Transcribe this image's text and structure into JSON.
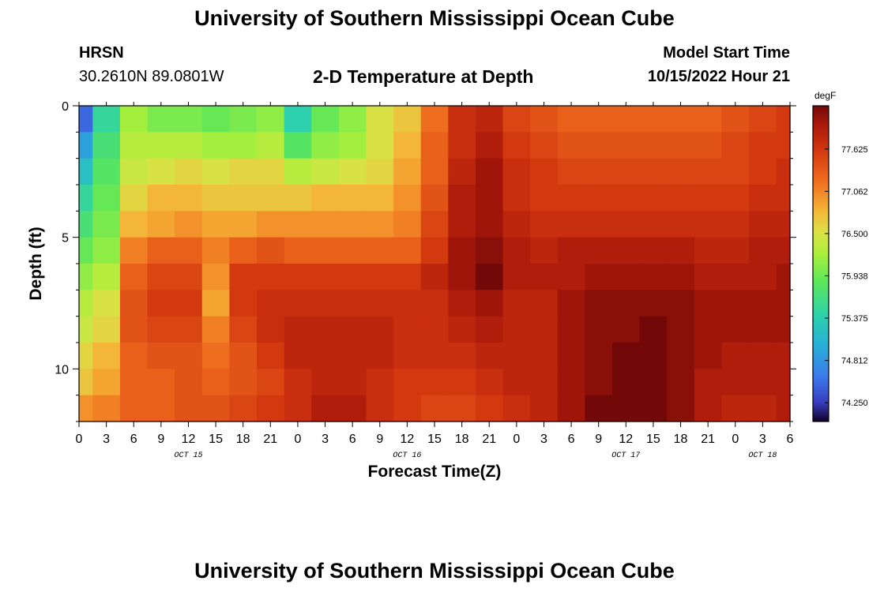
{
  "header": {
    "title": "University of Southern Mississippi Ocean Cube",
    "station": "HRSN",
    "coords": "30.2610N  89.0801W",
    "plot_title": "2-D Temperature at Depth",
    "model_start_label": "Model Start Time",
    "model_start_value": "10/15/2022 Hour 21"
  },
  "footer": {
    "title": "University of Southern Mississippi Ocean Cube"
  },
  "chart_data": {
    "type": "heatmap",
    "title": "2-D Temperature at Depth",
    "xlabel": "Forecast Time(Z)",
    "ylabel": "Depth (ft)",
    "x_ticks": [
      "0",
      "3",
      "6",
      "9",
      "12",
      "15",
      "18",
      "21",
      "0",
      "3",
      "6",
      "9",
      "12",
      "15",
      "18",
      "21",
      "0",
      "3",
      "6",
      "9",
      "12",
      "15",
      "18",
      "21",
      "0",
      "3",
      "6"
    ],
    "date_labels": [
      {
        "text": "OCT 15",
        "tick_index": 4
      },
      {
        "text": "OCT 16",
        "tick_index": 12
      },
      {
        "text": "OCT 17",
        "tick_index": 20
      },
      {
        "text": "OCT 18",
        "tick_index": 25
      }
    ],
    "y_ticks": [
      "0",
      "5",
      "10"
    ],
    "y_tick_values": [
      0,
      5,
      10
    ],
    "ylim": [
      0,
      12
    ],
    "colorbar": {
      "unit": "degF",
      "min": 74.0,
      "max": 78.2,
      "ticks": [
        "77.625",
        "77.062",
        "76.500",
        "75.938",
        "75.375",
        "74.812",
        "74.250"
      ],
      "tick_values": [
        77.625,
        77.062,
        76.5,
        75.938,
        75.375,
        74.812,
        74.25
      ]
    },
    "hours": [
      0,
      3,
      6,
      9,
      12,
      15,
      18,
      21,
      24,
      27,
      30,
      33,
      36,
      39,
      42,
      45,
      48,
      51,
      54,
      57,
      60,
      63,
      66,
      69,
      72,
      75,
      78
    ],
    "depths": [
      0.5,
      1.5,
      2.5,
      3.5,
      4.5,
      5.5,
      6.5,
      7.5,
      8.5,
      9.5,
      10.5,
      11.5
    ],
    "values": [
      [
        74.5,
        75.5,
        76.2,
        76.0,
        76.0,
        75.9,
        76.0,
        76.1,
        75.4,
        75.9,
        76.1,
        76.5,
        76.7,
        77.2,
        77.7,
        77.8,
        77.5,
        77.4,
        77.3,
        77.3,
        77.3,
        77.3,
        77.3,
        77.3,
        77.4,
        77.5,
        77.6
      ],
      [
        74.9,
        75.7,
        76.3,
        76.3,
        76.3,
        76.2,
        76.2,
        76.3,
        75.8,
        76.1,
        76.2,
        76.5,
        76.8,
        77.3,
        77.7,
        77.9,
        77.6,
        77.5,
        77.4,
        77.4,
        77.4,
        77.4,
        77.4,
        77.4,
        77.5,
        77.6,
        77.6
      ],
      [
        75.2,
        75.8,
        76.4,
        76.5,
        76.6,
        76.5,
        76.6,
        76.6,
        76.3,
        76.4,
        76.5,
        76.6,
        76.9,
        77.3,
        77.8,
        78.0,
        77.7,
        77.6,
        77.5,
        77.5,
        77.5,
        77.5,
        77.5,
        77.5,
        77.5,
        77.6,
        77.7
      ],
      [
        75.5,
        75.9,
        76.6,
        76.8,
        76.8,
        76.7,
        76.7,
        76.7,
        76.7,
        76.8,
        76.8,
        76.8,
        77.0,
        77.4,
        77.9,
        78.0,
        77.7,
        77.6,
        77.6,
        77.6,
        77.6,
        77.6,
        77.6,
        77.6,
        77.6,
        77.7,
        77.7
      ],
      [
        75.7,
        76.0,
        76.8,
        76.9,
        77.0,
        76.9,
        76.9,
        77.0,
        77.0,
        77.0,
        77.0,
        77.0,
        77.1,
        77.5,
        77.9,
        78.0,
        77.8,
        77.7,
        77.7,
        77.7,
        77.7,
        77.7,
        77.7,
        77.7,
        77.7,
        77.8,
        77.8
      ],
      [
        75.9,
        76.1,
        77.1,
        77.3,
        77.3,
        77.1,
        77.3,
        77.4,
        77.3,
        77.3,
        77.3,
        77.3,
        77.3,
        77.6,
        78.0,
        78.1,
        77.9,
        77.8,
        77.9,
        77.9,
        77.9,
        77.9,
        77.9,
        77.8,
        77.8,
        77.9,
        77.9
      ],
      [
        76.1,
        76.3,
        77.3,
        77.5,
        77.5,
        77.0,
        77.6,
        77.6,
        77.6,
        77.6,
        77.6,
        77.6,
        77.6,
        77.8,
        78.0,
        78.2,
        77.9,
        77.9,
        77.9,
        78.0,
        78.0,
        78.0,
        78.0,
        77.9,
        77.9,
        77.9,
        78.0
      ],
      [
        76.3,
        76.5,
        77.4,
        77.6,
        77.6,
        76.9,
        77.6,
        77.7,
        77.7,
        77.7,
        77.7,
        77.7,
        77.7,
        77.7,
        77.9,
        78.0,
        77.8,
        77.8,
        78.0,
        78.1,
        78.1,
        78.1,
        78.1,
        78.0,
        78.0,
        78.0,
        78.0
      ],
      [
        76.4,
        76.6,
        77.4,
        77.5,
        77.5,
        77.1,
        77.5,
        77.7,
        77.8,
        77.8,
        77.8,
        77.8,
        77.7,
        77.7,
        77.8,
        77.9,
        77.8,
        77.8,
        78.0,
        78.1,
        78.1,
        78.2,
        78.1,
        78.0,
        78.0,
        78.0,
        78.0
      ],
      [
        76.6,
        76.8,
        77.3,
        77.4,
        77.4,
        77.2,
        77.4,
        77.6,
        77.8,
        77.8,
        77.8,
        77.8,
        77.7,
        77.7,
        77.7,
        77.8,
        77.8,
        77.8,
        78.0,
        78.1,
        78.2,
        78.2,
        78.1,
        78.0,
        77.9,
        77.9,
        77.9
      ],
      [
        76.7,
        76.9,
        77.3,
        77.3,
        77.4,
        77.3,
        77.4,
        77.5,
        77.7,
        77.8,
        77.8,
        77.7,
        77.6,
        77.6,
        77.6,
        77.7,
        77.8,
        77.8,
        78.0,
        78.1,
        78.2,
        78.2,
        78.1,
        77.9,
        77.9,
        77.9,
        77.9
      ],
      [
        77.0,
        77.1,
        77.3,
        77.3,
        77.4,
        77.4,
        77.5,
        77.6,
        77.7,
        77.9,
        77.9,
        77.7,
        77.6,
        77.5,
        77.5,
        77.6,
        77.7,
        77.8,
        78.0,
        78.2,
        78.2,
        78.2,
        78.1,
        77.9,
        77.8,
        77.8,
        77.9
      ]
    ]
  }
}
